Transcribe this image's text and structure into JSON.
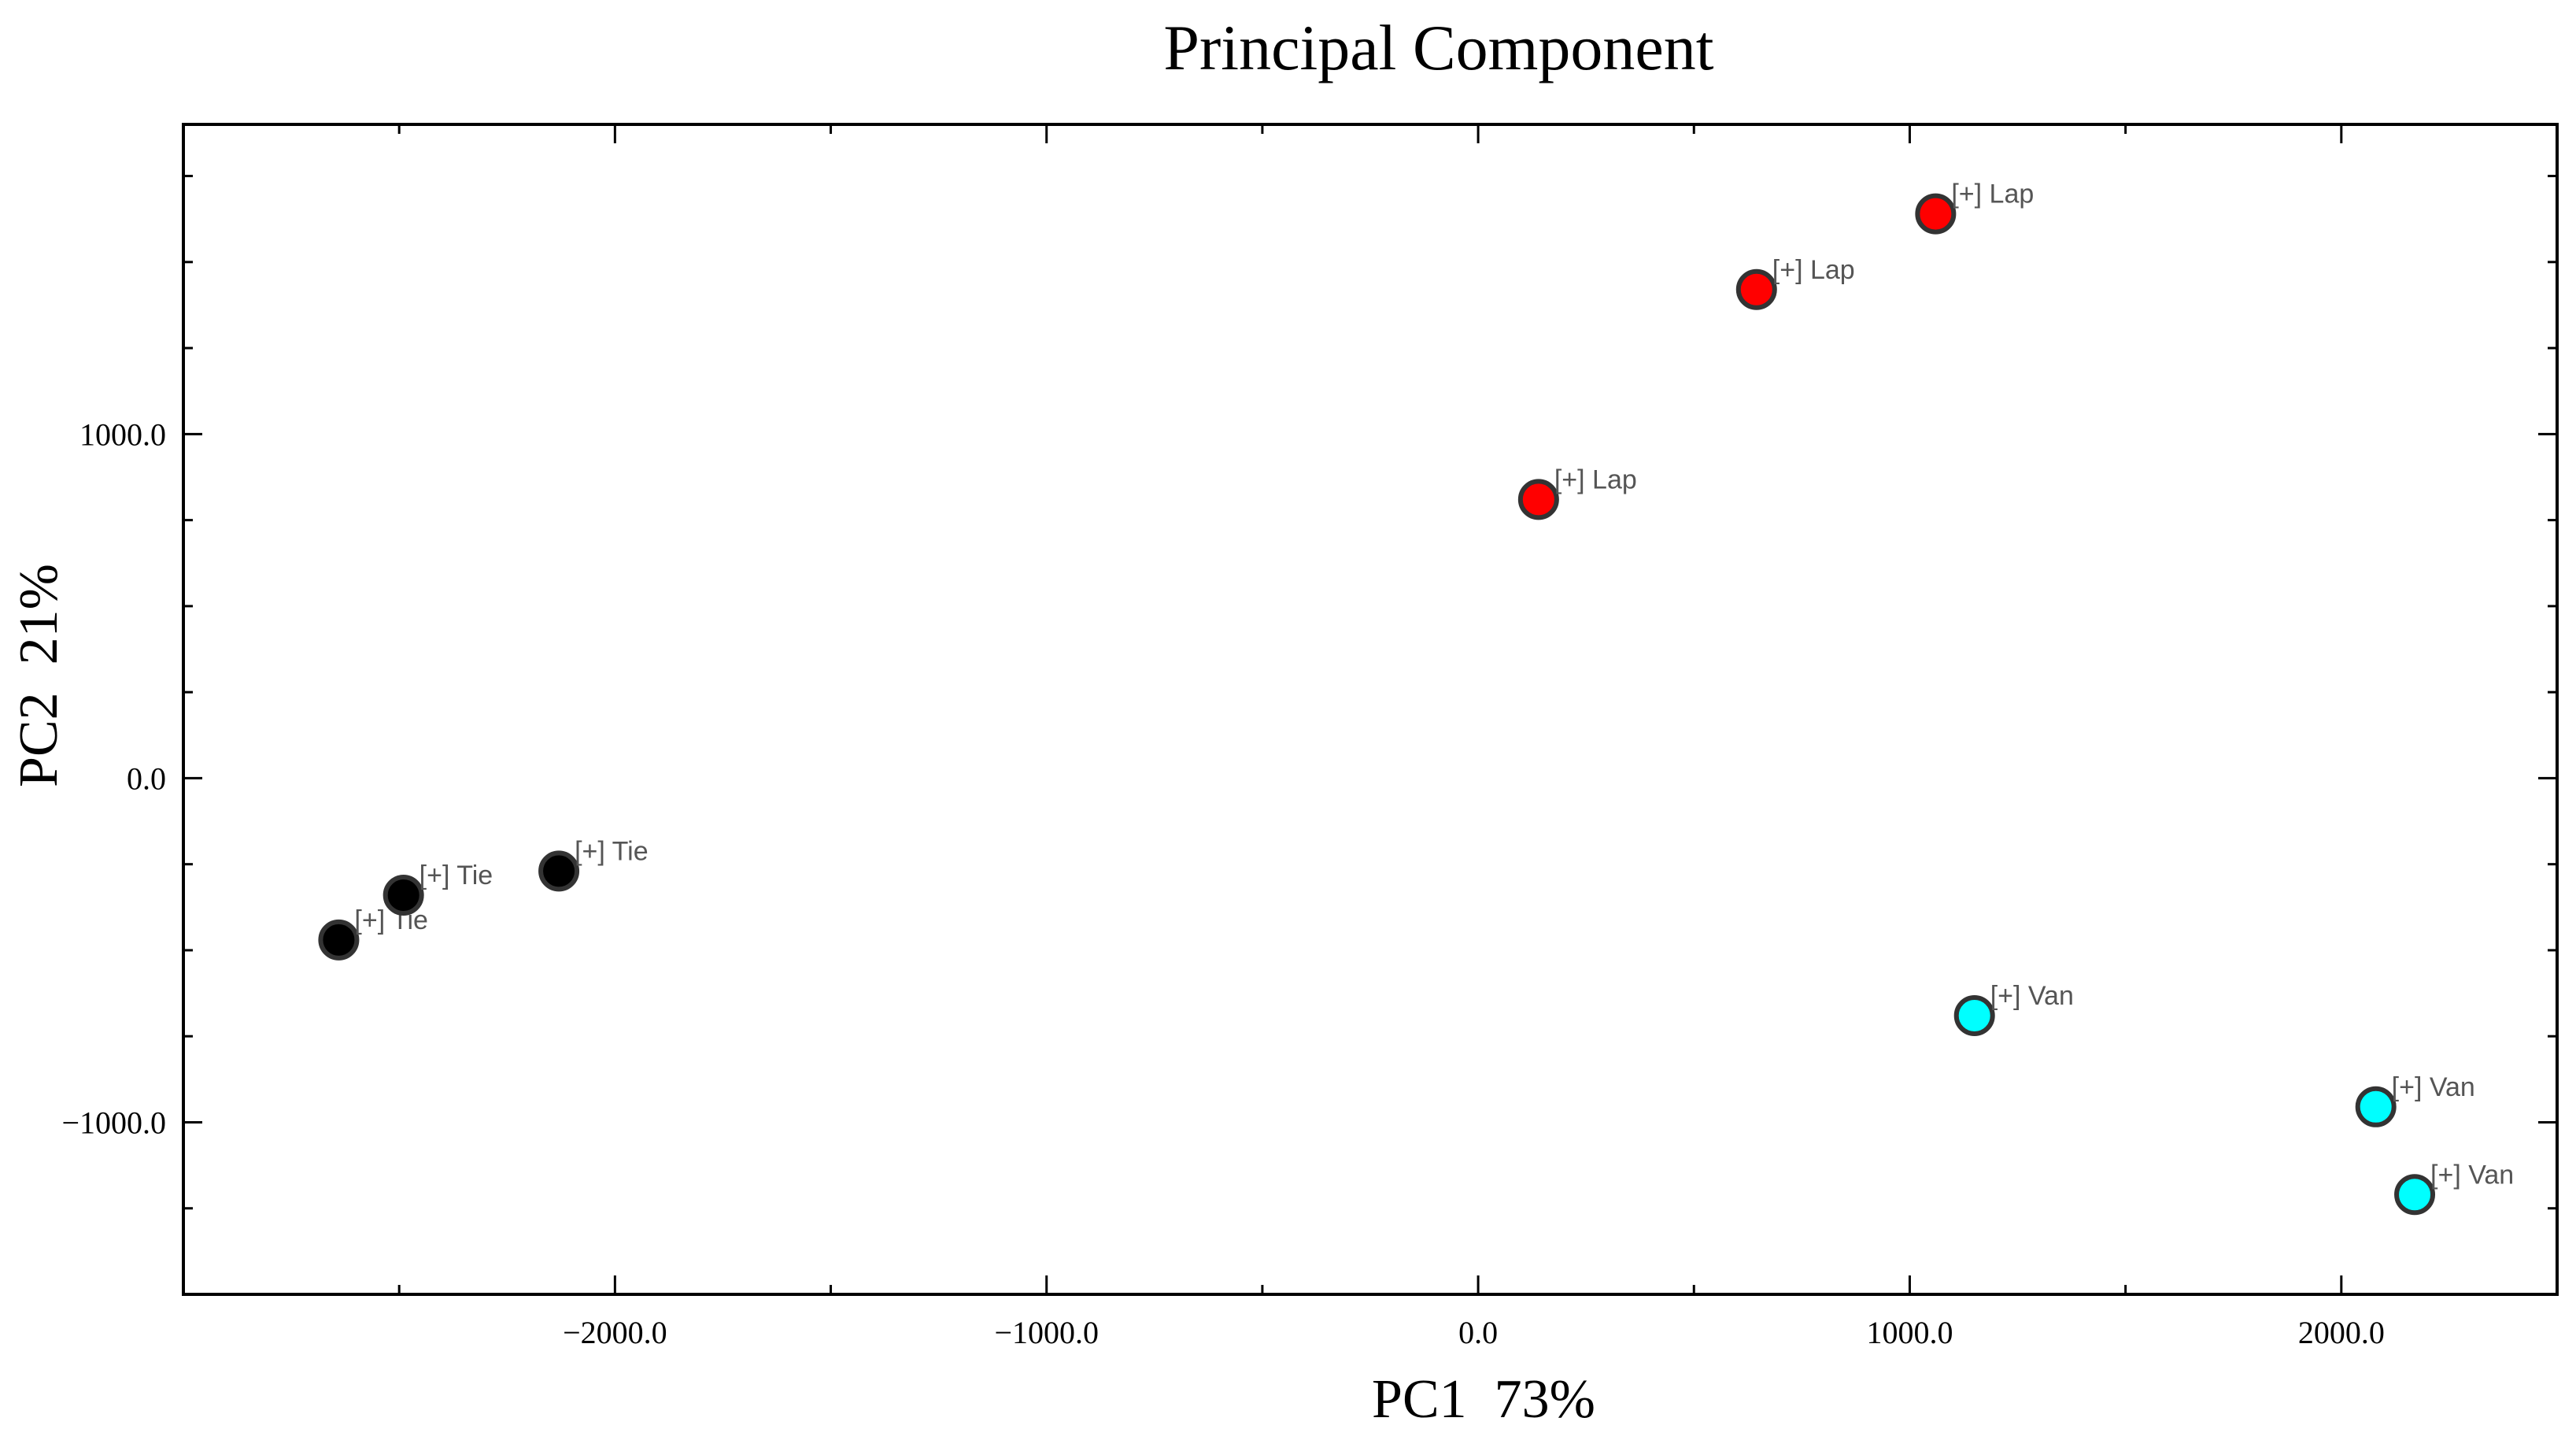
{
  "chart_data": {
    "type": "scatter",
    "title": "Principal Component",
    "xlabel": "PC1  73%",
    "ylabel": "PC2  21%",
    "xlim": [
      -3000,
      2500
    ],
    "ylim": [
      -1500,
      1900
    ],
    "xticks": [
      -2000,
      -1000,
      0,
      1000,
      2000
    ],
    "yticks": [
      -1000,
      0,
      1000
    ],
    "xtick_labels": [
      "−2000.0",
      "−1000.0",
      "0.0",
      "1000.0",
      "2000.0"
    ],
    "ytick_labels": [
      "−1000.0",
      "0.0",
      "1000.0"
    ],
    "grid": false,
    "series": [
      {
        "name": "[+] Lap",
        "color": "#ff0000",
        "points": [
          {
            "x": 140,
            "y": 810,
            "label": "[+] Lap"
          },
          {
            "x": 645,
            "y": 1420,
            "label": "[+] Lap"
          },
          {
            "x": 1060,
            "y": 1640,
            "label": "[+] Lap"
          }
        ]
      },
      {
        "name": "[+] Tie",
        "color": "#000000",
        "points": [
          {
            "x": -2640,
            "y": -470,
            "label": "[+] Tie"
          },
          {
            "x": -2490,
            "y": -340,
            "label": "[+] Tie"
          },
          {
            "x": -2130,
            "y": -270,
            "label": "[+] Tie"
          }
        ]
      },
      {
        "name": "[+] Van",
        "color": "#00ffff",
        "points": [
          {
            "x": 1150,
            "y": -690,
            "label": "[+] Van"
          },
          {
            "x": 2080,
            "y": -955,
            "label": "[+] Van"
          },
          {
            "x": 2170,
            "y": -1210,
            "label": "[+] Van"
          }
        ]
      }
    ]
  }
}
